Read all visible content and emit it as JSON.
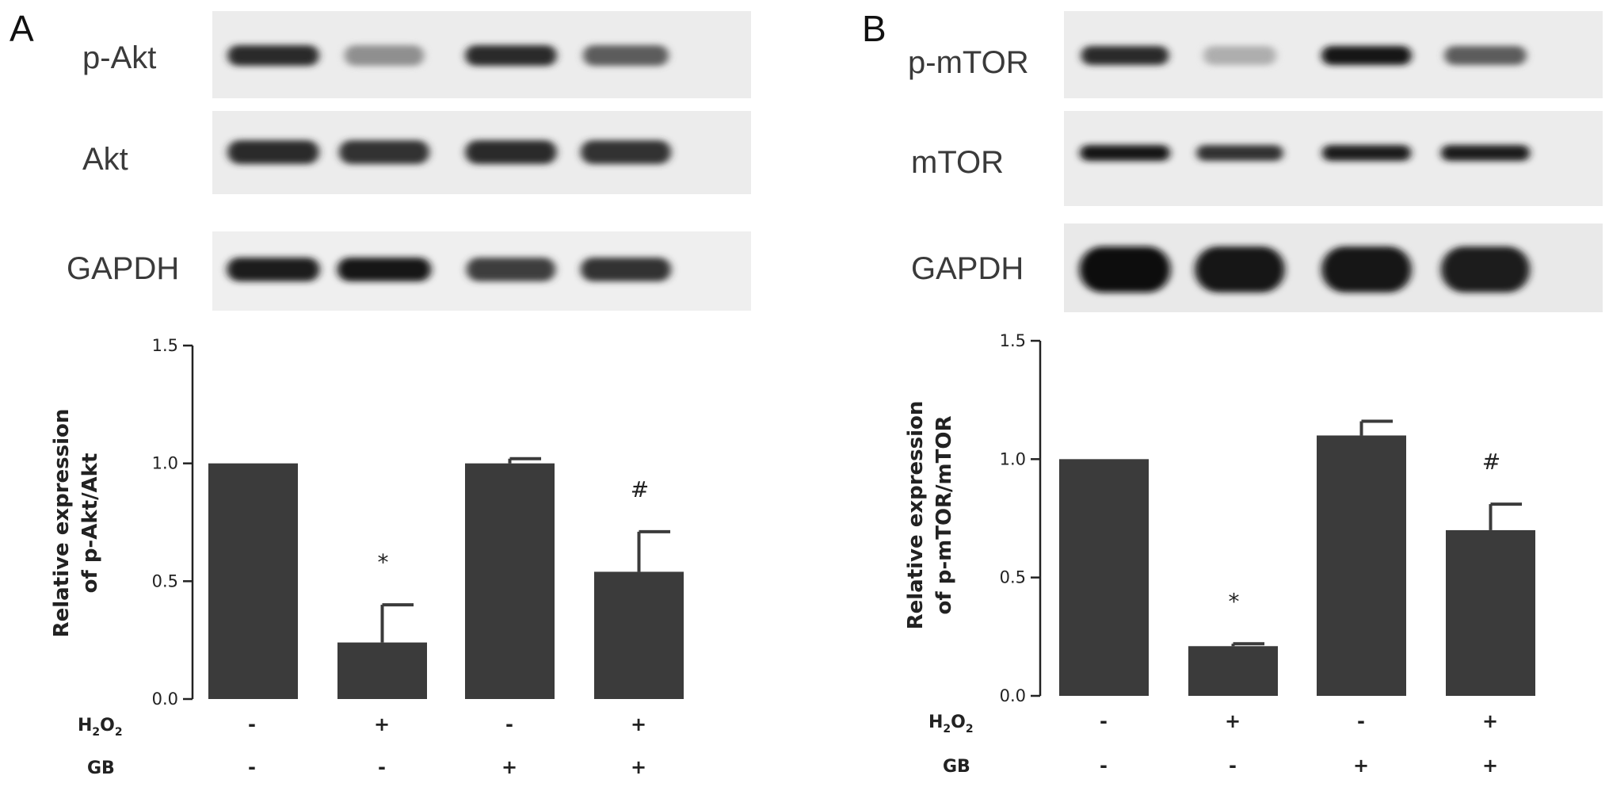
{
  "panels": [
    {
      "letter": "A",
      "blots": [
        {
          "label": "p-Akt",
          "intensities": [
            0.85,
            0.35,
            0.85,
            0.6
          ]
        },
        {
          "label": "Akt",
          "intensities": [
            0.85,
            0.8,
            0.85,
            0.8
          ]
        },
        {
          "label": "GAPDH",
          "intensities": [
            0.9,
            0.95,
            0.75,
            0.8
          ]
        }
      ]
    },
    {
      "letter": "B",
      "blots": [
        {
          "label": "p-mTOR",
          "intensities": [
            0.85,
            0.2,
            0.95,
            0.6
          ]
        },
        {
          "label": "mTOR",
          "intensities": [
            0.95,
            0.8,
            0.9,
            0.9
          ]
        },
        {
          "label": "GAPDH",
          "intensities": [
            1.0,
            0.95,
            0.95,
            0.9
          ]
        }
      ]
    }
  ],
  "conditions": {
    "h2o2_label": "H",
    "h2o2_sub1": "2",
    "h2o2_mid": "O",
    "h2o2_sub2": "2",
    "gb_label": "GB",
    "h2o2": [
      "-",
      "+",
      "-",
      "+"
    ],
    "gb": [
      "-",
      "-",
      "+",
      "+"
    ]
  },
  "chart_data": [
    {
      "type": "bar",
      "categories": [
        "-/-",
        "+/-",
        "-/+",
        "+/+"
      ],
      "values": [
        1.0,
        0.24,
        1.0,
        0.54
      ],
      "errors": [
        0,
        0.16,
        0.02,
        0.17
      ],
      "significance": [
        "",
        "*",
        "",
        "#"
      ],
      "ylabel_line1": "Relative expression",
      "ylabel_line2": "of p-Akt/Akt",
      "ylim": [
        0,
        1.5
      ],
      "yticks": [
        "0.0",
        "0.5",
        "1.0",
        "1.5"
      ],
      "bar_color": "#3b3b3b",
      "grid": false
    },
    {
      "type": "bar",
      "categories": [
        "-/-",
        "+/-",
        "-/+",
        "+/+"
      ],
      "values": [
        1.0,
        0.21,
        1.1,
        0.7
      ],
      "errors": [
        0,
        0.01,
        0.06,
        0.11
      ],
      "significance": [
        "",
        "*",
        "",
        "#"
      ],
      "ylabel_line1": "Relative expression",
      "ylabel_line2": "of p-mTOR/mTOR",
      "ylim": [
        0,
        1.5
      ],
      "yticks": [
        "0.0",
        "0.5",
        "1.0",
        "1.5"
      ],
      "bar_color": "#3b3b3b",
      "grid": false
    }
  ]
}
